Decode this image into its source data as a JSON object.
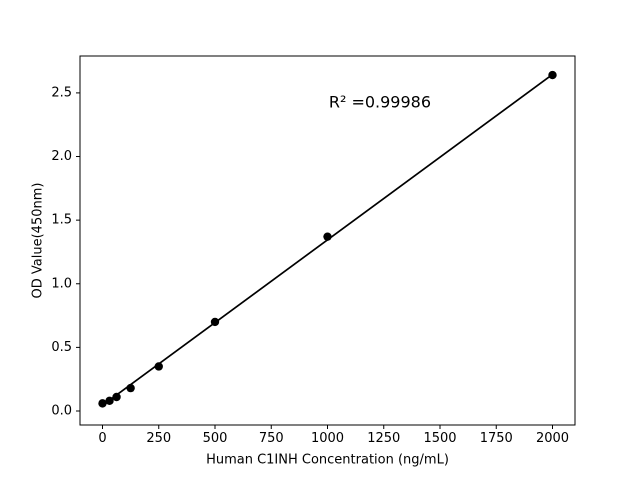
{
  "figure": {
    "background": "#ffffff"
  },
  "chart_data": {
    "type": "scatter",
    "title": "",
    "xlabel": "Human C1INH Concentration (ng/mL)",
    "ylabel": "OD Value(450nm)",
    "x": [
      0,
      31.25,
      62.5,
      125,
      250,
      500,
      1000,
      2000
    ],
    "y": [
      0.06,
      0.08,
      0.11,
      0.18,
      0.35,
      0.7,
      1.37,
      2.64
    ],
    "trendline": {
      "x1": 0,
      "y1": 0.045,
      "x2": 2000,
      "y2": 2.645
    },
    "annotation": {
      "text": "R² =0.99986",
      "x": 1233,
      "y": 2.42
    },
    "x_ticks": [
      "0",
      "250",
      "500",
      "750",
      "1000",
      "1250",
      "1500",
      "1750",
      "2000"
    ],
    "x_tick_values": [
      0,
      250,
      500,
      750,
      1000,
      1250,
      1500,
      1750,
      2000
    ],
    "y_ticks": [
      "0.0",
      "0.5",
      "1.0",
      "1.5",
      "2.0",
      "2.5"
    ],
    "y_tick_values": [
      0.0,
      0.5,
      1.0,
      1.5,
      2.0,
      2.5
    ],
    "xlim": [
      -100,
      2100
    ],
    "ylim": [
      -0.11,
      2.79
    ],
    "grid": "off",
    "legend": "none",
    "marker_color": "#000000",
    "line_color": "#000000",
    "axis_color": "#000000"
  }
}
